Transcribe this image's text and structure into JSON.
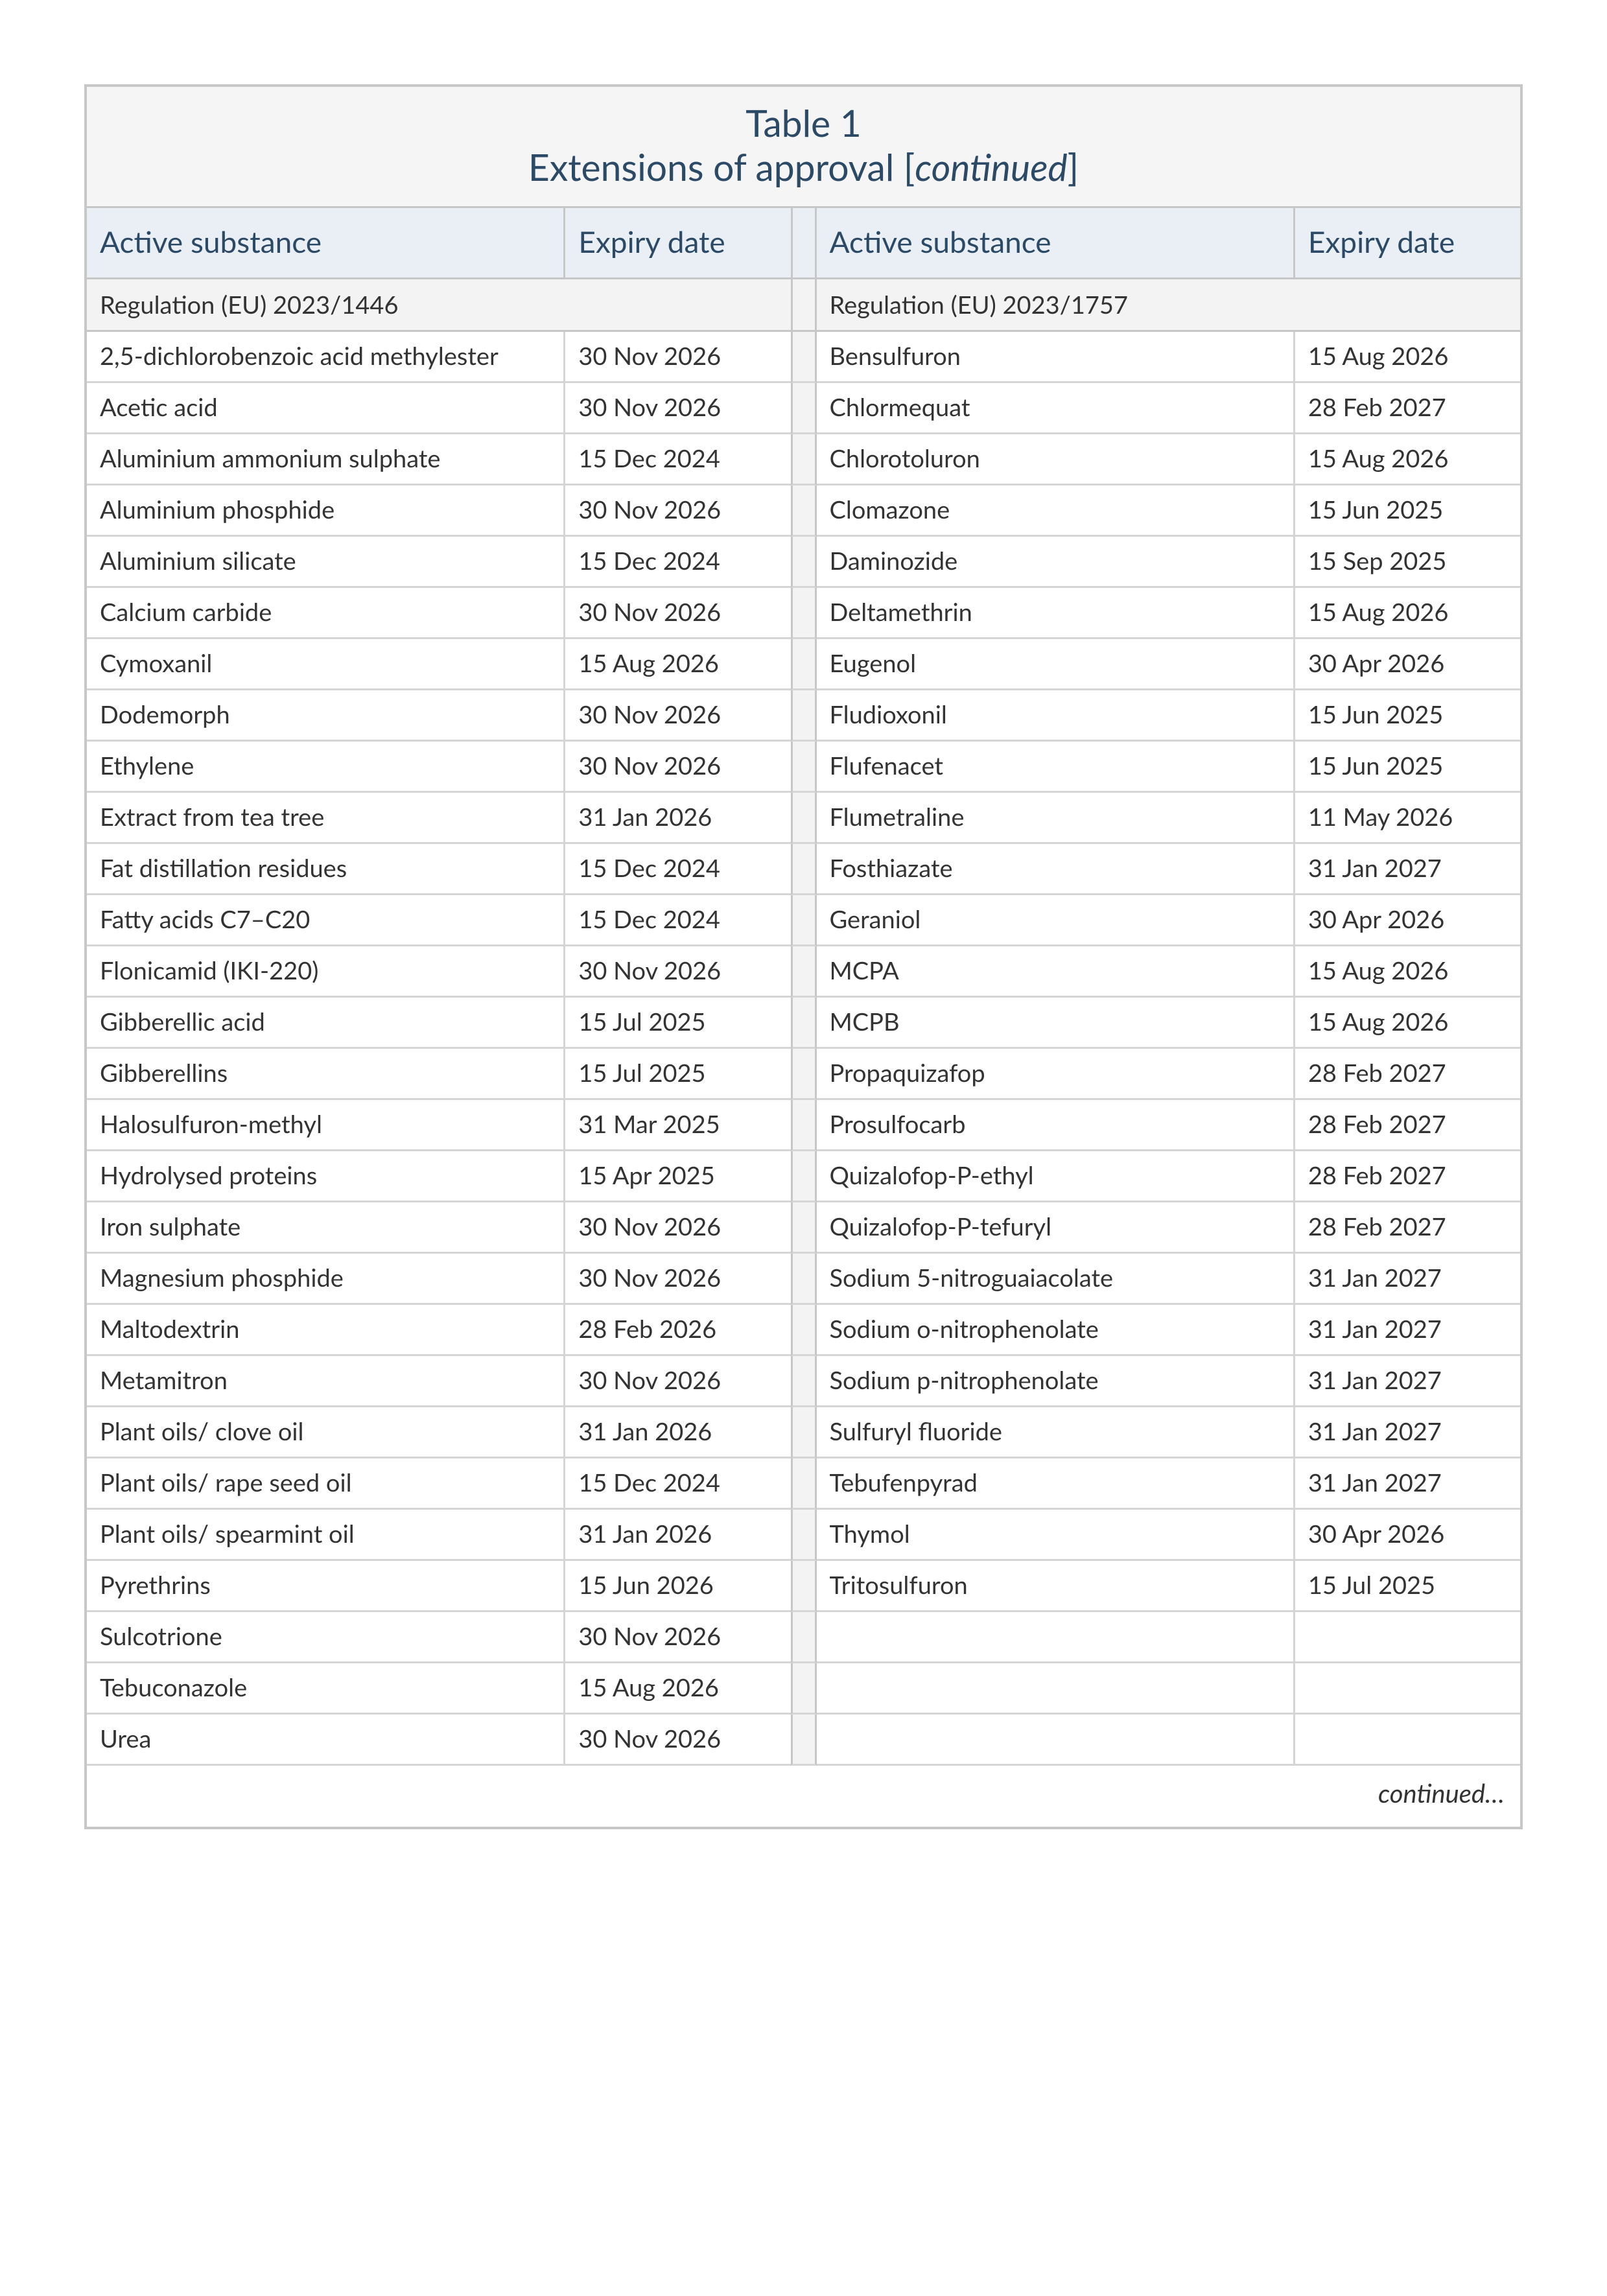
{
  "title": {
    "line1": "Table 1",
    "line2_prefix": "Extensions of approval [",
    "line2_ital": "continued",
    "line2_suffix": "]"
  },
  "headers": {
    "substance": "Active substance",
    "expiry": "Expiry date"
  },
  "left": {
    "regulation": "Regulation (EU) 2023/1446",
    "rows": [
      {
        "s": "2,5-dichlorobenzoic acid methylester",
        "d": "30 Nov 2026"
      },
      {
        "s": "Acetic acid",
        "d": "30 Nov 2026"
      },
      {
        "s": "Aluminium ammonium sulphate",
        "d": "15 Dec 2024"
      },
      {
        "s": "Aluminium phosphide",
        "d": "30 Nov 2026"
      },
      {
        "s": "Aluminium silicate",
        "d": "15 Dec 2024"
      },
      {
        "s": "Calcium carbide",
        "d": "30 Nov 2026"
      },
      {
        "s": "Cymoxanil",
        "d": "15 Aug 2026"
      },
      {
        "s": "Dodemorph",
        "d": "30 Nov 2026"
      },
      {
        "s": "Ethylene",
        "d": "30 Nov 2026"
      },
      {
        "s": "Extract from tea tree",
        "d": "31 Jan 2026"
      },
      {
        "s": "Fat distillation residues",
        "d": "15 Dec 2024"
      },
      {
        "s": "Fatty acids C7–C20",
        "d": "15 Dec 2024"
      },
      {
        "s": "Flonicamid (IKI-220)",
        "d": "30 Nov 2026"
      },
      {
        "s": "Gibberellic acid",
        "d": "15 Jul 2025"
      },
      {
        "s": "Gibberellins",
        "d": "15 Jul 2025"
      },
      {
        "s": "Halosulfuron-methyl",
        "d": "31 Mar 2025"
      },
      {
        "s": "Hydrolysed proteins",
        "d": "15 Apr 2025"
      },
      {
        "s": "Iron sulphate",
        "d": "30 Nov 2026"
      },
      {
        "s": "Magnesium phosphide",
        "d": "30 Nov 2026"
      },
      {
        "s": "Maltodextrin",
        "d": "28 Feb 2026"
      },
      {
        "s": "Metamitron",
        "d": "30 Nov 2026"
      },
      {
        "s": "Plant oils/ clove oil",
        "d": "31 Jan 2026"
      },
      {
        "s": "Plant oils/ rape seed oil",
        "d": "15 Dec 2024"
      },
      {
        "s": "Plant oils/ spearmint oil",
        "d": "31 Jan 2026"
      },
      {
        "s": "Pyrethrins",
        "d": "15 Jun 2026"
      },
      {
        "s": "Sulcotrione",
        "d": "30 Nov 2026"
      },
      {
        "s": "Tebuconazole",
        "d": "15 Aug 2026"
      },
      {
        "s": "Urea",
        "d": "30 Nov 2026"
      }
    ]
  },
  "right": {
    "regulation": "Regulation (EU) 2023/1757",
    "rows": [
      {
        "s": "Bensulfuron",
        "d": "15 Aug 2026"
      },
      {
        "s": "Chlormequat",
        "d": "28 Feb 2027"
      },
      {
        "s": "Chlorotoluron",
        "d": "15 Aug 2026"
      },
      {
        "s": "Clomazone",
        "d": "15 Jun 2025"
      },
      {
        "s": "Daminozide",
        "d": "15 Sep 2025"
      },
      {
        "s": "Deltamethrin",
        "d": "15 Aug 2026"
      },
      {
        "s": "Eugenol",
        "d": "30 Apr 2026"
      },
      {
        "s": "Fludioxonil",
        "d": "15 Jun 2025"
      },
      {
        "s": "Flufenacet",
        "d": "15 Jun 2025"
      },
      {
        "s": "Flumetraline",
        "d": "11 May 2026"
      },
      {
        "s": "Fosthiazate",
        "d": "31 Jan 2027"
      },
      {
        "s": "Geraniol",
        "d": "30 Apr 2026"
      },
      {
        "s": "MCPA",
        "d": "15 Aug 2026"
      },
      {
        "s": "MCPB",
        "d": "15 Aug 2026"
      },
      {
        "s": "Propaquizafop",
        "d": "28 Feb 2027"
      },
      {
        "s": "Prosulfocarb",
        "d": "28 Feb 2027"
      },
      {
        "s": "Quizalofop-P-ethyl",
        "d": "28 Feb 2027"
      },
      {
        "s": "Quizalofop-P-tefuryl",
        "d": "28 Feb 2027"
      },
      {
        "s": "Sodium 5-nitroguaiacolate",
        "d": "31 Jan 2027"
      },
      {
        "s": "Sodium o-nitrophenolate",
        "d": "31 Jan 2027"
      },
      {
        "s": "Sodium p-nitrophenolate",
        "d": "31 Jan 2027"
      },
      {
        "s": "Sulfuryl fluoride",
        "d": "31 Jan 2027"
      },
      {
        "s": "Tebufenpyrad",
        "d": "31 Jan 2027"
      },
      {
        "s": "Thymol",
        "d": "30 Apr 2026"
      },
      {
        "s": "Tritosulfuron",
        "d": "15 Jul 2025"
      },
      {
        "s": "",
        "d": ""
      },
      {
        "s": "",
        "d": ""
      },
      {
        "s": "",
        "d": ""
      }
    ]
  },
  "footer": "continued…",
  "style": {
    "border_color": "#c7c7c7",
    "row_border_color": "#d5d5d5",
    "title_bg": "#f5f5f5",
    "head_bg": "#e9eff5",
    "reg_bg": "#f3f3f3",
    "spacer_bg": "#f3f3f3",
    "head_text": "#2c4a66",
    "body_text": "#333333",
    "page_bg": "#ffffff"
  }
}
